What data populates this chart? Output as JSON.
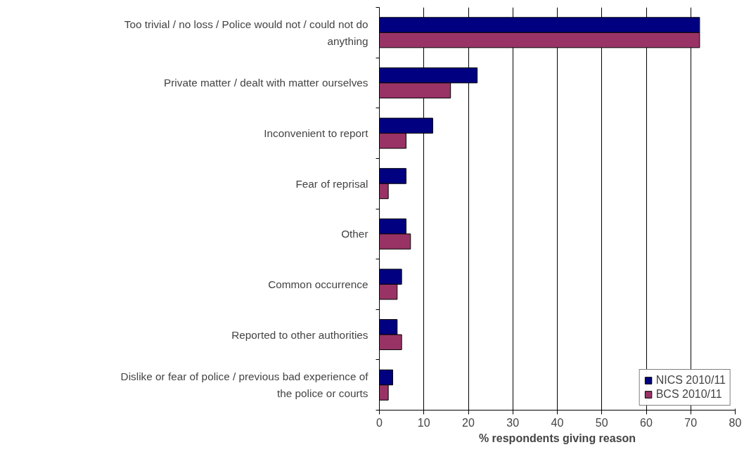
{
  "chart_data": {
    "type": "bar",
    "orientation": "horizontal",
    "xlabel": "% respondents giving reason",
    "categories": [
      "Too trivial / no loss / Police would not / could not do anything",
      "Private matter / dealt with matter ourselves",
      "Inconvenient to report",
      "Fear of reprisal",
      "Other",
      "Common occurrence",
      "Reported to other authorities",
      "Dislike or fear of police / previous bad experience of the police or courts"
    ],
    "series": [
      {
        "name": "NICS 2010/11",
        "color": "#000080",
        "values": [
          72,
          22,
          12,
          6,
          6,
          5,
          4,
          3
        ]
      },
      {
        "name": "BCS 2010/11",
        "color": "#993366",
        "values": [
          72,
          16,
          6,
          2,
          7,
          4,
          5,
          2
        ]
      }
    ],
    "xlim": [
      0,
      80
    ],
    "xticks": [
      0,
      10,
      20,
      30,
      40,
      50,
      60,
      70,
      80
    ],
    "grid": "x",
    "legend": "bottom right"
  }
}
